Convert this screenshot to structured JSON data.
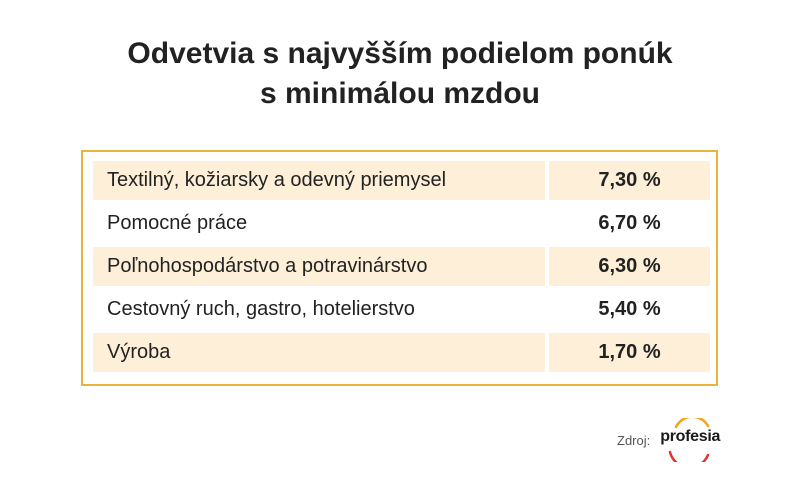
{
  "title_lines": [
    "Odvetvia s najvyšším podielom ponúk",
    "s minimálou mzdou"
  ],
  "chart_data": {
    "type": "table",
    "title": "Odvetvia s najvyšším podielom ponúk s minimálou mzdou",
    "rows": [
      {
        "category": "Textilný, kožiarsky a odevný priemysel",
        "value_text": "7,30 %",
        "value": 7.3
      },
      {
        "category": "Pomocné práce",
        "value_text": "6,70 %",
        "value": 6.7
      },
      {
        "category": "Poľnohospodárstvo a potravinárstvo",
        "value_text": "6,30 %",
        "value": 6.3
      },
      {
        "category": "Cestovný ruch, gastro, hotelierstvo",
        "value_text": "5,40 %",
        "value": 5.4
      },
      {
        "category": "Výroba",
        "value_text": "1,70 %",
        "value": 1.7
      }
    ]
  },
  "source": {
    "label": "Zdroj:",
    "logo_text": "profesia"
  },
  "colors": {
    "border": "#e7b53b",
    "row_shade": "#fdefd8",
    "logo_red": "#e3342f",
    "logo_orange": "#f3a21b"
  }
}
